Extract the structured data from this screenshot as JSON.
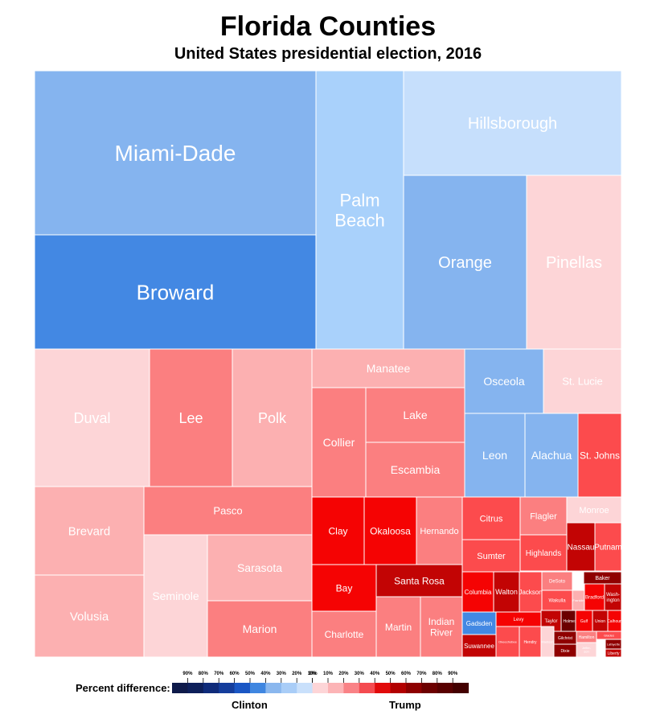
{
  "chart_data": {
    "type": "treemap",
    "title": "Florida Counties",
    "subtitle": "United States presidential election, 2016",
    "value_meaning": "Percent difference between winning and losing candidate (margin)",
    "counties": [
      {
        "name": "Miami-Dade",
        "winner": "Clinton",
        "margin": 30
      },
      {
        "name": "Broward",
        "winner": "Clinton",
        "margin": 40
      },
      {
        "name": "Palm Beach",
        "winner": "Clinton",
        "margin": 20
      },
      {
        "name": "Hillsborough",
        "winner": "Clinton",
        "margin": 10
      },
      {
        "name": "Orange",
        "winner": "Clinton",
        "margin": 30
      },
      {
        "name": "Pinellas",
        "winner": "Trump",
        "margin": 10
      },
      {
        "name": "Duval",
        "winner": "Trump",
        "margin": 10
      },
      {
        "name": "Lee",
        "winner": "Trump",
        "margin": 30
      },
      {
        "name": "Polk",
        "winner": "Trump",
        "margin": 20
      },
      {
        "name": "Manatee",
        "winner": "Trump",
        "margin": 20
      },
      {
        "name": "Osceola",
        "winner": "Clinton",
        "margin": 30
      },
      {
        "name": "St. Lucie",
        "winner": "Trump",
        "margin": 10
      },
      {
        "name": "Collier",
        "winner": "Trump",
        "margin": 30
      },
      {
        "name": "Lake",
        "winner": "Trump",
        "margin": 30
      },
      {
        "name": "Escambia",
        "winner": "Trump",
        "margin": 30
      },
      {
        "name": "Leon",
        "winner": "Clinton",
        "margin": 30
      },
      {
        "name": "Alachua",
        "winner": "Clinton",
        "margin": 30
      },
      {
        "name": "St. Johns",
        "winner": "Trump",
        "margin": 40
      },
      {
        "name": "Brevard",
        "winner": "Trump",
        "margin": 20
      },
      {
        "name": "Volusia",
        "winner": "Trump",
        "margin": 20
      },
      {
        "name": "Pasco",
        "winner": "Trump",
        "margin": 30
      },
      {
        "name": "Seminole",
        "winner": "Trump",
        "margin": 10
      },
      {
        "name": "Sarasota",
        "winner": "Trump",
        "margin": 20
      },
      {
        "name": "Marion",
        "winner": "Trump",
        "margin": 30
      },
      {
        "name": "Clay",
        "winner": "Trump",
        "margin": 50
      },
      {
        "name": "Okaloosa",
        "winner": "Trump",
        "margin": 50
      },
      {
        "name": "Hernando",
        "winner": "Trump",
        "margin": 30
      },
      {
        "name": "Bay",
        "winner": "Trump",
        "margin": 50
      },
      {
        "name": "Santa Rosa",
        "winner": "Trump",
        "margin": 60
      },
      {
        "name": "Charlotte",
        "winner": "Trump",
        "margin": 30
      },
      {
        "name": "Martin",
        "winner": "Trump",
        "margin": 30
      },
      {
        "name": "Indian River",
        "winner": "Trump",
        "margin": 30
      },
      {
        "name": "Citrus",
        "winner": "Trump",
        "margin": 40
      },
      {
        "name": "Sumter",
        "winner": "Trump",
        "margin": 40
      },
      {
        "name": "Flagler",
        "winner": "Trump",
        "margin": 30
      },
      {
        "name": "Highlands",
        "winner": "Trump",
        "margin": 40
      },
      {
        "name": "Monroe",
        "winner": "Trump",
        "margin": 10
      },
      {
        "name": "Nassau",
        "winner": "Trump",
        "margin": 60
      },
      {
        "name": "Putnam",
        "winner": "Trump",
        "margin": 40
      },
      {
        "name": "Columbia",
        "winner": "Trump",
        "margin": 50
      },
      {
        "name": "Walton",
        "winner": "Trump",
        "margin": 60
      },
      {
        "name": "Jackson",
        "winner": "Trump",
        "margin": 40
      },
      {
        "name": "DeSoto",
        "winner": "Trump",
        "margin": 30
      },
      {
        "name": "Wakulla",
        "winner": "Trump",
        "margin": 40
      },
      {
        "name": "Hendry",
        "winner": "Trump",
        "margin": 40
      },
      {
        "name": "Baker",
        "winner": "Trump",
        "margin": 70
      },
      {
        "name": "Bradford",
        "winner": "Trump",
        "margin": 50
      },
      {
        "name": "Washington",
        "winner": "Trump",
        "margin": 60
      },
      {
        "name": "Gadsden",
        "winner": "Clinton",
        "margin": 40
      },
      {
        "name": "Levy",
        "winner": "Trump",
        "margin": 50
      },
      {
        "name": "Taylor",
        "winner": "Trump",
        "margin": 60
      },
      {
        "name": "Holmes",
        "winner": "Trump",
        "margin": 80
      },
      {
        "name": "Gulf",
        "winner": "Trump",
        "margin": 50
      },
      {
        "name": "Union",
        "winner": "Trump",
        "margin": 60
      },
      {
        "name": "Calhoun",
        "winner": "Trump",
        "margin": 50
      },
      {
        "name": "Suwannee",
        "winner": "Trump",
        "margin": 60
      },
      {
        "name": "Okeechobee",
        "winner": "Trump",
        "margin": 40
      },
      {
        "name": "Hardee",
        "winner": "Trump",
        "margin": 20
      },
      {
        "name": "Madison",
        "winner": "Trump",
        "margin": 10
      },
      {
        "name": "Gilchrist",
        "winner": "Trump",
        "margin": 70
      },
      {
        "name": "Dixie",
        "winner": "Trump",
        "margin": 70
      },
      {
        "name": "Hamilton",
        "winner": "Trump",
        "margin": 30
      },
      {
        "name": "Glades",
        "winner": "Trump",
        "margin": 40
      },
      {
        "name": "Jefferson",
        "winner": "Trump",
        "margin": 10
      },
      {
        "name": "Franklin",
        "winner": "Trump",
        "margin": 20
      },
      {
        "name": "Lafayette",
        "winner": "Trump",
        "margin": 70
      },
      {
        "name": "Liberty",
        "winner": "Trump",
        "margin": 60
      }
    ],
    "legend": {
      "label": "Percent difference:",
      "ticks": [
        "90%",
        "80%",
        "70%",
        "60%",
        "50%",
        "40%",
        "30%",
        "20%",
        "10%",
        "0%",
        "10%",
        "20%",
        "30%",
        "40%",
        "50%",
        "60%",
        "70%",
        "80%",
        "90%"
      ],
      "left_label": "Clinton",
      "right_label": "Trump",
      "colors": [
        "#0e1a4a",
        "#0d1f5a",
        "#0f2b7a",
        "#143d9c",
        "#1a56c4",
        "#3f86e0",
        "#8ab7ee",
        "#a9cdf7",
        "#c9e0fb",
        "#fdd5d7",
        "#fcb4b6",
        "#f98286",
        "#f44b50",
        "#e10a0a",
        "#b20000",
        "#8d0000",
        "#6c0000",
        "#580000",
        "#430000"
      ]
    }
  }
}
